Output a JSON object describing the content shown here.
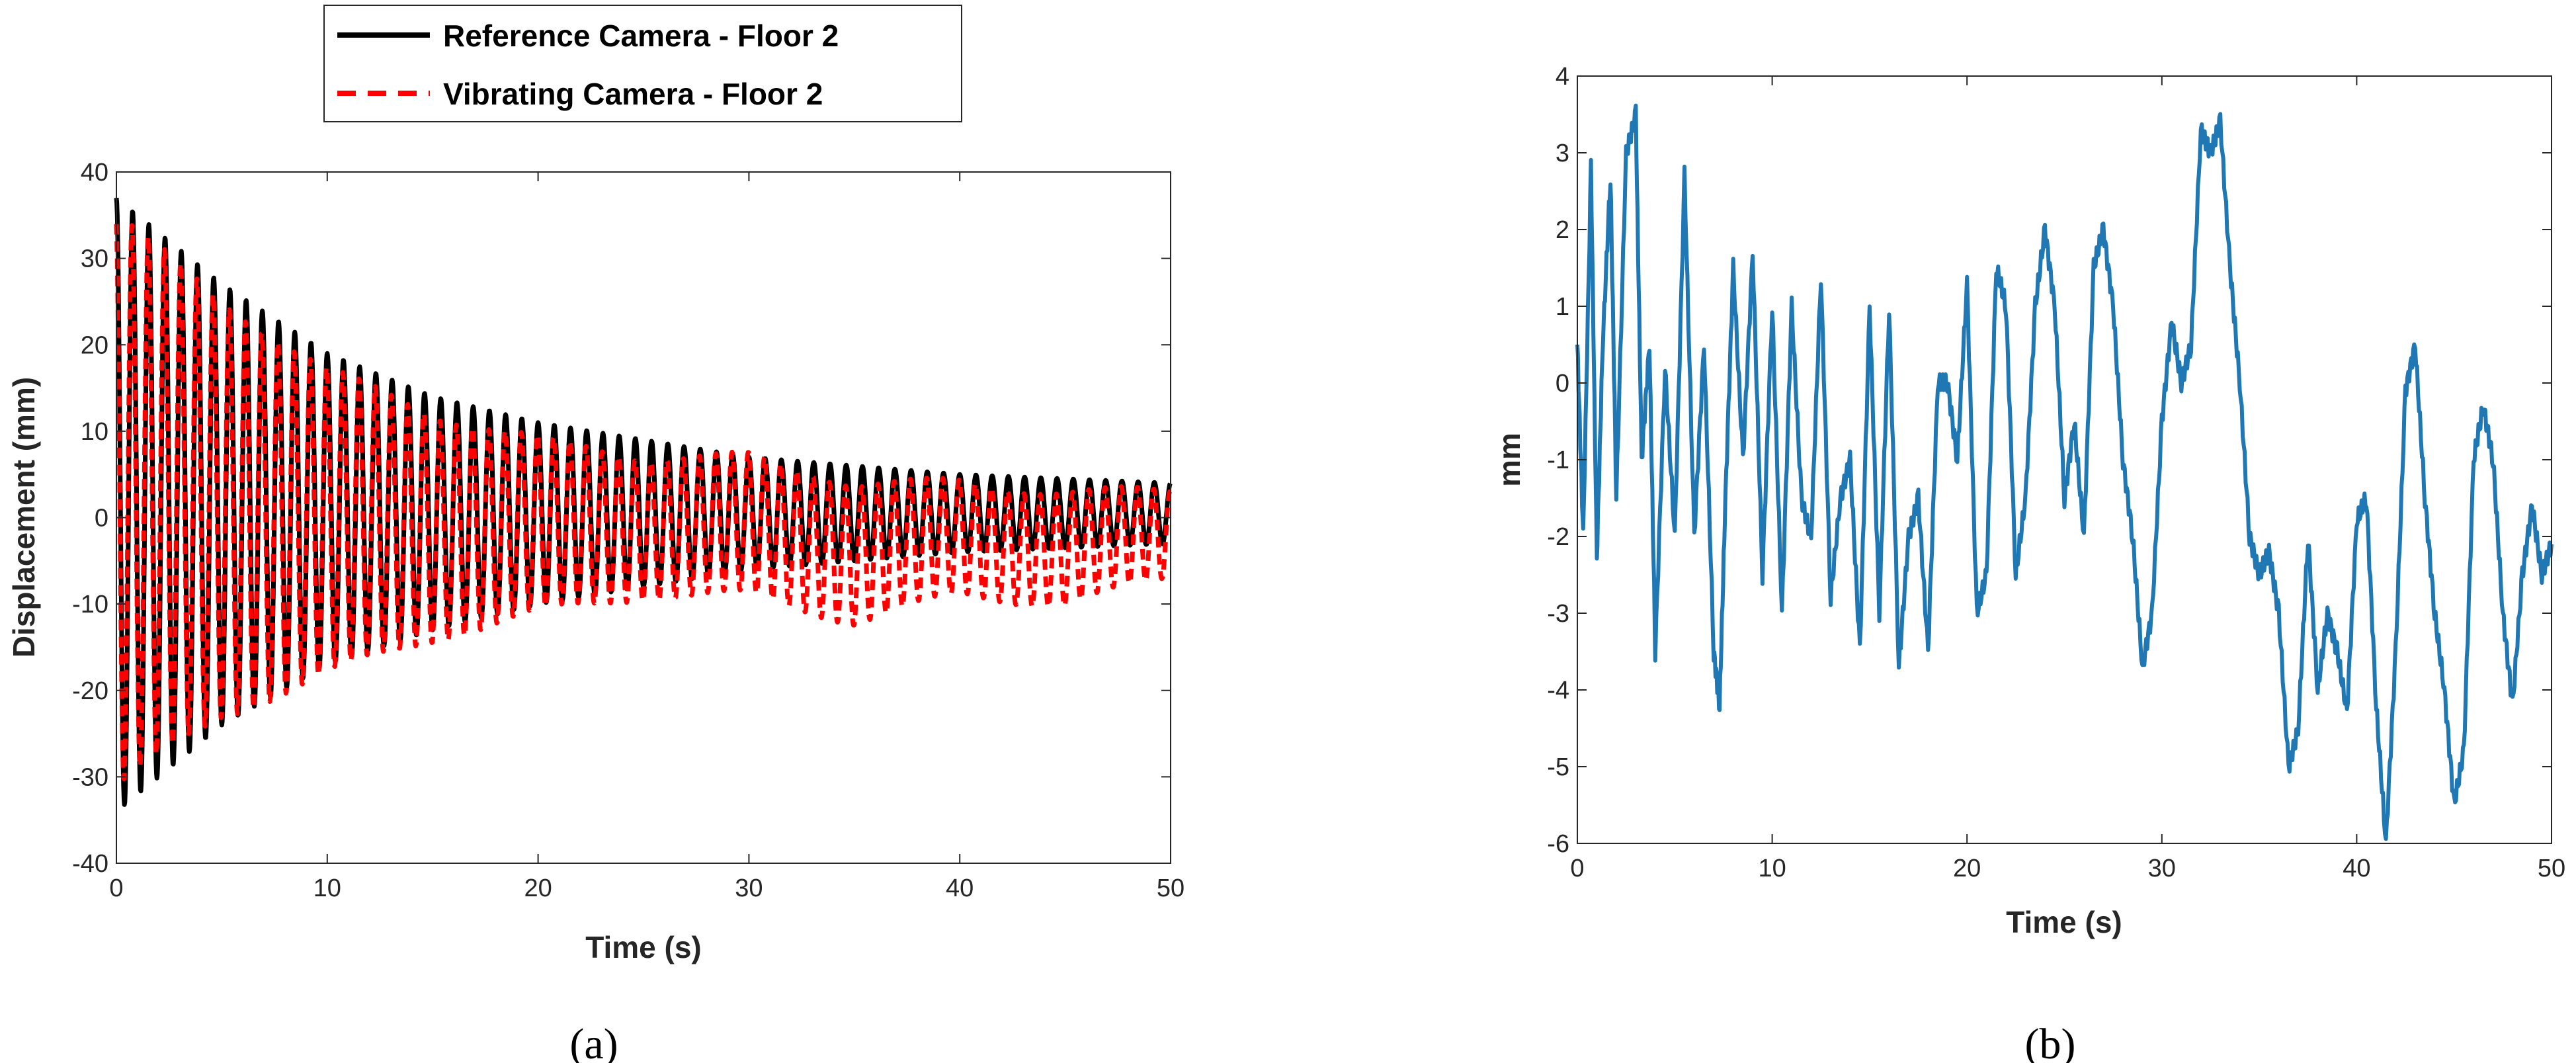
{
  "chart_data": [
    {
      "type": "line",
      "panel_label": "(a)",
      "xlabel": "Time (s)",
      "ylabel": "Displacement (mm)",
      "xlim": [
        0,
        50
      ],
      "ylim": [
        -40,
        40
      ],
      "xticks": [
        0,
        10,
        20,
        30,
        40,
        50
      ],
      "yticks": [
        -40,
        -30,
        -20,
        -10,
        0,
        10,
        20,
        30,
        40
      ],
      "legend_position": "top-center",
      "grid": false,
      "series": [
        {
          "name": "Reference Camera - Floor 2",
          "color": "#000000",
          "style": "solid",
          "description": "damped oscillation, ~1.3 Hz",
          "envelope_t": [
            0,
            5,
            10,
            15,
            20,
            25,
            30,
            35,
            40,
            45,
            50
          ],
          "envelope_upper": [
            37,
            27,
            19,
            14,
            11,
            9,
            7,
            6,
            5,
            4.5,
            4
          ],
          "envelope_lower": [
            -34,
            -24,
            -17,
            -13,
            -10,
            -8,
            -6,
            -5,
            -4,
            -3.5,
            -3
          ]
        },
        {
          "name": "Vibrating Camera - Floor 2",
          "color": "#ff0000",
          "style": "dashed",
          "description": "damped oscillation with camera motion, ~1.3 Hz",
          "envelope_t": [
            0,
            5,
            10,
            15,
            20,
            25,
            30,
            35,
            40,
            45,
            50
          ],
          "envelope_upper": [
            35,
            25,
            17,
            12,
            9,
            7,
            7,
            4,
            4,
            3,
            3
          ],
          "envelope_lower": [
            -31,
            -23,
            -18,
            -14,
            -11,
            -9,
            -9,
            -12,
            -9,
            -10,
            -7
          ]
        }
      ]
    },
    {
      "type": "line",
      "panel_label": "(b)",
      "xlabel": "Time (s)",
      "ylabel": "mm",
      "xlim": [
        0,
        50
      ],
      "ylim": [
        -6,
        4
      ],
      "xticks": [
        0,
        10,
        20,
        30,
        40,
        50
      ],
      "yticks": [
        -6,
        -5,
        -4,
        -3,
        -2,
        -1,
        0,
        1,
        2,
        3,
        4
      ],
      "grid": false,
      "series": [
        {
          "color": "#1f77b4",
          "style": "solid",
          "x": [
            0,
            0.3,
            0.7,
            1.0,
            1.3,
            1.7,
            2.0,
            2.5,
            3.0,
            3.3,
            3.7,
            4.0,
            4.5,
            5.0,
            5.5,
            6.0,
            6.5,
            7.0,
            7.3,
            7.6,
            8.0,
            8.5,
            9.0,
            9.5,
            10.0,
            10.5,
            11.0,
            11.5,
            12.0,
            12.5,
            13.0,
            13.5,
            14.0,
            14.5,
            15.0,
            15.5,
            16.0,
            16.5,
            17.0,
            17.5,
            18.0,
            18.5,
            19.0,
            19.5,
            20.0,
            20.5,
            21.0,
            21.5,
            22.0,
            22.5,
            23.0,
            23.5,
            24.0,
            24.5,
            25.0,
            25.5,
            26.0,
            26.5,
            27.0,
            27.5,
            28.0,
            28.5,
            29.0,
            29.5,
            30.0,
            30.5,
            31.0,
            31.5,
            32.0,
            32.5,
            33.0,
            33.5,
            34.0,
            34.5,
            35.0,
            35.5,
            36.0,
            36.5,
            37.0,
            37.5,
            38.0,
            38.5,
            39.0,
            39.5,
            40.0,
            40.5,
            41.0,
            41.5,
            42.0,
            42.5,
            43.0,
            43.5,
            44.0,
            44.5,
            45.0,
            45.5,
            46.0,
            46.5,
            47.0,
            47.5,
            48.0,
            48.5,
            49.0,
            49.5,
            50.0
          ],
          "y": [
            0.5,
            -2.0,
            2.8,
            -2.3,
            0.5,
            2.7,
            -1.5,
            3.0,
            3.5,
            -1.0,
            0.5,
            -3.5,
            0.2,
            -2.0,
            2.7,
            -2.0,
            0.5,
            -3.5,
            -4.2,
            -1.5,
            1.5,
            -1.0,
            1.7,
            -2.5,
            1.0,
            -3.0,
            1.0,
            -1.5,
            -2.0,
            1.4,
            -2.8,
            -1.5,
            -1.0,
            -3.5,
            1.0,
            -3.0,
            1.0,
            -3.7,
            -2.0,
            -1.5,
            -3.5,
            0.0,
            0.0,
            -1.0,
            1.3,
            -3.0,
            -2.5,
            1.5,
            1.0,
            -2.5,
            -1.5,
            1.0,
            2.0,
            1.0,
            -1.5,
            -0.5,
            -2.0,
            1.5,
            2.0,
            1.0,
            -1.0,
            -2.0,
            -3.7,
            -3.0,
            -0.5,
            0.8,
            0.0,
            0.5,
            3.3,
            3.0,
            3.4,
            1.5,
            0.0,
            -2.0,
            -2.5,
            -2.2,
            -3.0,
            -5.0,
            -4.5,
            -2.0,
            -4.0,
            -3.0,
            -3.5,
            -4.3,
            -1.8,
            -1.5,
            -4.2,
            -6.0,
            -3.5,
            -0.1,
            0.5,
            -1.5,
            -3.0,
            -4.0,
            -5.5,
            -4.8,
            -1.0,
            -0.3,
            -1.0,
            -3.0,
            -4.2,
            -2.5,
            -1.6,
            -2.5,
            -2.1
          ]
        }
      ]
    }
  ]
}
